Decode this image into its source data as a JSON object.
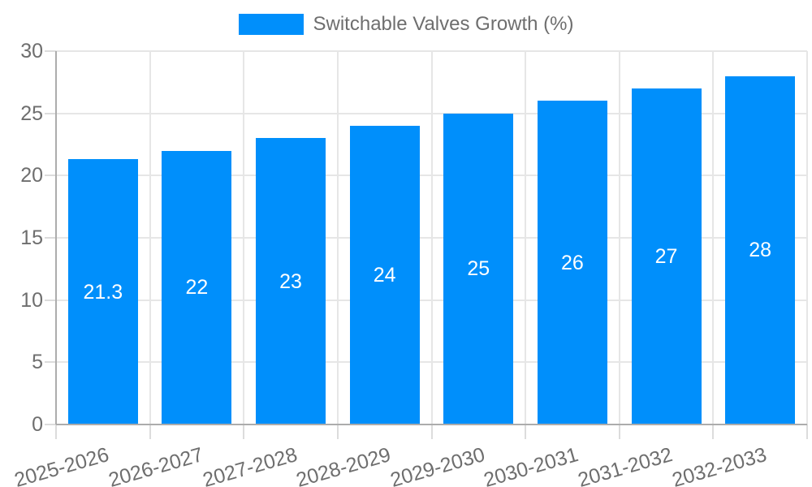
{
  "chart_data": {
    "type": "bar",
    "title": "",
    "legend": "Switchable Valves Growth (%)",
    "legend_position": "top",
    "categories": [
      "2025-2026",
      "2026-2027",
      "2027-2028",
      "2028-2029",
      "2029-2030",
      "2030-2031",
      "2031-2032",
      "2032-2033"
    ],
    "values": [
      21.3,
      22,
      23,
      24,
      25,
      26,
      27,
      28
    ],
    "bar_value_labels": [
      "21.3",
      "22",
      "23",
      "24",
      "25",
      "26",
      "27",
      "28"
    ],
    "xlabel": "",
    "ylabel": "",
    "ylim": [
      0,
      30
    ],
    "yticks": [
      0,
      5,
      10,
      15,
      20,
      25,
      30
    ],
    "grid": true,
    "x_label_rotation_deg": -16,
    "colors": {
      "bar": "#008FFB",
      "bar_value_label": "#FFFFFF",
      "axis_label": "#6E6E6E",
      "gridline": "#E6E6E6",
      "tick_mark": "#DCDCDC",
      "axis_line": "#ACACAC",
      "background": "#FFFFFF"
    }
  }
}
